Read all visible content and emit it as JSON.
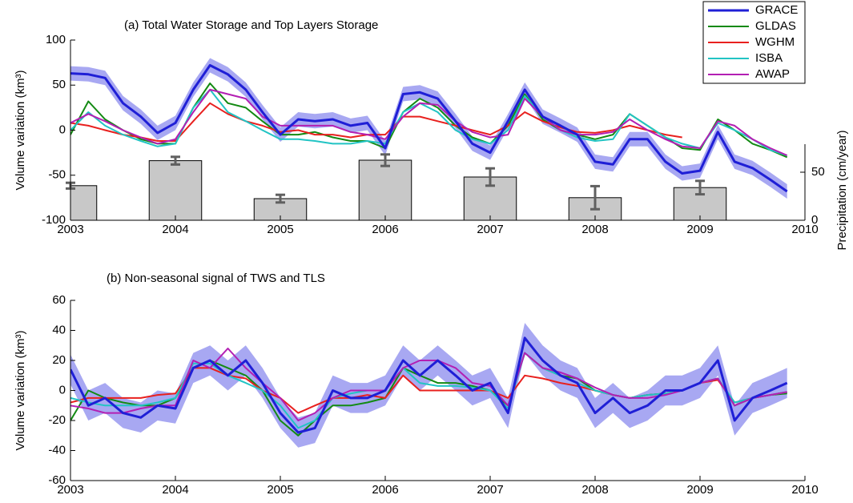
{
  "chart_data": [
    {
      "type": "line",
      "title": "(a) Total Water Storage and Top Layers Storage",
      "ylabel": "Volume variation (km³)",
      "y2label": "Precipitation (cm/year)",
      "xlim": [
        2003,
        2010
      ],
      "xticks": [
        2003,
        2004,
        2005,
        2006,
        2007,
        2008,
        2009,
        2010
      ],
      "ylim": [
        -100,
        100
      ],
      "yticks": [
        -100,
        -50,
        0,
        50,
        100
      ],
      "y2lim": [
        0,
        187.5
      ],
      "y2ticks": [
        0,
        50
      ],
      "legend": "upper right",
      "x": [
        2003,
        2003.17,
        2003.33,
        2003.5,
        2003.67,
        2003.83,
        2004,
        2004.17,
        2004.33,
        2004.5,
        2004.67,
        2004.83,
        2005,
        2005.17,
        2005.33,
        2005.5,
        2005.67,
        2005.83,
        2006,
        2006.17,
        2006.33,
        2006.5,
        2006.67,
        2006.83,
        2007,
        2007.17,
        2007.33,
        2007.5,
        2007.67,
        2007.83,
        2008,
        2008.17,
        2008.33,
        2008.5,
        2008.67,
        2008.83,
        2009,
        2009.17,
        2009.33,
        2009.5,
        2009.67,
        2009.83
      ],
      "bars": {
        "type": "bar",
        "axis": "y2",
        "color": "#c8c8c8",
        "error_color": "#606060",
        "x": [
          2003,
          2004,
          2005,
          2006,
          2007,
          2008,
          2009
        ],
        "values": [
          36,
          62,
          22.5,
          62.5,
          45,
          23.5,
          34
        ],
        "errors": [
          3,
          4,
          4,
          6,
          9,
          12,
          7
        ]
      },
      "series": [
        {
          "name": "GRACE",
          "color": "#1f1fd6",
          "band_color": "#a8a8f2",
          "values": [
            63,
            62,
            58,
            30,
            15,
            -3,
            8,
            45,
            72,
            62,
            45,
            20,
            -5,
            12,
            10,
            12,
            5,
            8,
            -20,
            40,
            42,
            35,
            10,
            -15,
            -25,
            10,
            45,
            15,
            5,
            -5,
            -35,
            -38,
            -10,
            -10,
            -35,
            -48,
            -45,
            -2,
            -35,
            -42,
            -55,
            -68
          ],
          "errors": [
            8,
            8,
            8,
            8,
            8,
            8,
            8,
            8,
            8,
            8,
            8,
            8,
            8,
            8,
            8,
            8,
            8,
            8,
            8,
            8,
            8,
            8,
            8,
            8,
            8,
            8,
            8,
            8,
            8,
            8,
            8,
            8,
            8,
            8,
            8,
            8,
            8,
            8,
            8,
            8,
            8,
            8
          ]
        },
        {
          "name": "GLDAS",
          "color": "#138a13",
          "values": [
            -5,
            32,
            12,
            0,
            -10,
            -15,
            -15,
            25,
            52,
            30,
            25,
            10,
            -5,
            -5,
            -2,
            -8,
            -12,
            -12,
            -20,
            20,
            35,
            25,
            5,
            -8,
            -15,
            5,
            40,
            12,
            0,
            -5,
            -10,
            -5,
            18,
            5,
            -8,
            -20,
            -22,
            12,
            0,
            -15,
            -22,
            -30
          ]
        },
        {
          "name": "WGHM",
          "color": "#e8201e",
          "values": [
            8,
            5,
            0,
            -5,
            -8,
            -12,
            -12,
            10,
            30,
            18,
            10,
            5,
            -2,
            0,
            -5,
            -5,
            -8,
            -5,
            -5,
            15,
            15,
            10,
            5,
            0,
            -5,
            5,
            20,
            10,
            3,
            -2,
            -3,
            0,
            5,
            0,
            -5,
            -8,
            null,
            null,
            null,
            null,
            null,
            null
          ]
        },
        {
          "name": "ISBA",
          "color": "#22c4c4",
          "values": [
            0,
            20,
            5,
            -5,
            -12,
            -18,
            -15,
            25,
            45,
            20,
            10,
            0,
            -10,
            -10,
            -12,
            -15,
            -15,
            -12,
            -15,
            20,
            30,
            20,
            0,
            -10,
            -15,
            0,
            38,
            15,
            0,
            -8,
            -12,
            -10,
            18,
            5,
            -8,
            -15,
            -20,
            8,
            0,
            -10,
            -22,
            -28
          ]
        },
        {
          "name": "AWAP",
          "color": "#b31fb3",
          "values": [
            8,
            18,
            10,
            0,
            -8,
            -15,
            -10,
            20,
            45,
            40,
            35,
            15,
            5,
            5,
            5,
            5,
            -2,
            -5,
            -10,
            15,
            30,
            28,
            10,
            -2,
            -8,
            -5,
            35,
            15,
            0,
            -5,
            -5,
            -2,
            12,
            0,
            -10,
            -18,
            -20,
            10,
            5,
            -10,
            -20,
            -28
          ]
        }
      ]
    },
    {
      "type": "line",
      "title": "(b) Non-seasonal signal of TWS and TLS",
      "ylabel": "Volume variation (km³)",
      "xlim": [
        2003,
        2010
      ],
      "xticks": [
        2003,
        2004,
        2005,
        2006,
        2007,
        2008,
        2009,
        2010
      ],
      "ylim": [
        -60,
        60
      ],
      "yticks": [
        -60,
        -40,
        -20,
        0,
        20,
        40,
        60
      ],
      "x": [
        2003,
        2003.17,
        2003.33,
        2003.5,
        2003.67,
        2003.83,
        2004,
        2004.17,
        2004.33,
        2004.5,
        2004.67,
        2004.83,
        2005,
        2005.17,
        2005.33,
        2005.5,
        2005.67,
        2005.83,
        2006,
        2006.17,
        2006.33,
        2006.5,
        2006.67,
        2006.83,
        2007,
        2007.17,
        2007.33,
        2007.5,
        2007.67,
        2007.83,
        2008,
        2008.17,
        2008.33,
        2008.5,
        2008.67,
        2008.83,
        2009,
        2009.17,
        2009.33,
        2009.5,
        2009.67,
        2009.83
      ],
      "series": [
        {
          "name": "GRACE",
          "color": "#1f1fd6",
          "band_color": "#a8a8f2",
          "values": [
            14,
            -10,
            -5,
            -15,
            -18,
            -10,
            -12,
            15,
            20,
            10,
            20,
            5,
            -15,
            -28,
            -25,
            0,
            -5,
            -5,
            0,
            20,
            10,
            20,
            10,
            0,
            5,
            -15,
            35,
            20,
            10,
            5,
            -15,
            -5,
            -15,
            -10,
            0,
            0,
            5,
            20,
            -20,
            -5,
            0,
            5
          ],
          "errors": [
            10,
            10,
            10,
            10,
            10,
            10,
            10,
            10,
            10,
            10,
            10,
            10,
            10,
            10,
            10,
            10,
            10,
            10,
            10,
            10,
            10,
            10,
            10,
            10,
            10,
            10,
            10,
            10,
            10,
            10,
            10,
            10,
            10,
            10,
            10,
            10,
            10,
            10,
            10,
            10,
            10,
            10
          ]
        },
        {
          "name": "GLDAS",
          "color": "#138a13",
          "values": [
            -20,
            0,
            -5,
            -8,
            -10,
            -10,
            -5,
            15,
            20,
            15,
            10,
            0,
            -20,
            -30,
            -20,
            -10,
            -10,
            -8,
            -5,
            15,
            10,
            5,
            5,
            3,
            0,
            -10,
            25,
            15,
            10,
            8,
            0,
            -3,
            -5,
            -3,
            -2,
            0,
            5,
            8,
            -10,
            -5,
            -3,
            -2
          ]
        },
        {
          "name": "WGHM",
          "color": "#e8201e",
          "values": [
            -8,
            -5,
            -5,
            -5,
            -5,
            -3,
            -2,
            15,
            15,
            10,
            8,
            0,
            -5,
            -15,
            -10,
            -5,
            -5,
            -3,
            -5,
            10,
            0,
            0,
            0,
            0,
            0,
            -5,
            10,
            8,
            5,
            3,
            0,
            -3,
            -5,
            -3,
            -2,
            0,
            5,
            7,
            -8,
            -5,
            -3,
            -1
          ]
        },
        {
          "name": "ISBA",
          "color": "#22c4c4",
          "values": [
            -5,
            -8,
            -10,
            -10,
            -10,
            -8,
            -5,
            18,
            18,
            10,
            5,
            0,
            -10,
            -25,
            -20,
            -5,
            -2,
            0,
            0,
            15,
            5,
            3,
            3,
            2,
            0,
            -12,
            25,
            15,
            10,
            5,
            0,
            -3,
            -5,
            -3,
            -2,
            0,
            5,
            8,
            -8,
            -5,
            -3,
            -1
          ]
        },
        {
          "name": "AWAP",
          "color": "#b31fb3",
          "values": [
            -10,
            -12,
            -15,
            -15,
            -12,
            -10,
            -10,
            20,
            15,
            28,
            15,
            5,
            -5,
            -20,
            -15,
            -5,
            0,
            0,
            0,
            15,
            20,
            20,
            15,
            5,
            3,
            -10,
            25,
            15,
            12,
            8,
            2,
            -3,
            -5,
            -5,
            -3,
            0,
            5,
            8,
            -10,
            -5,
            -3,
            -1
          ]
        }
      ]
    }
  ]
}
